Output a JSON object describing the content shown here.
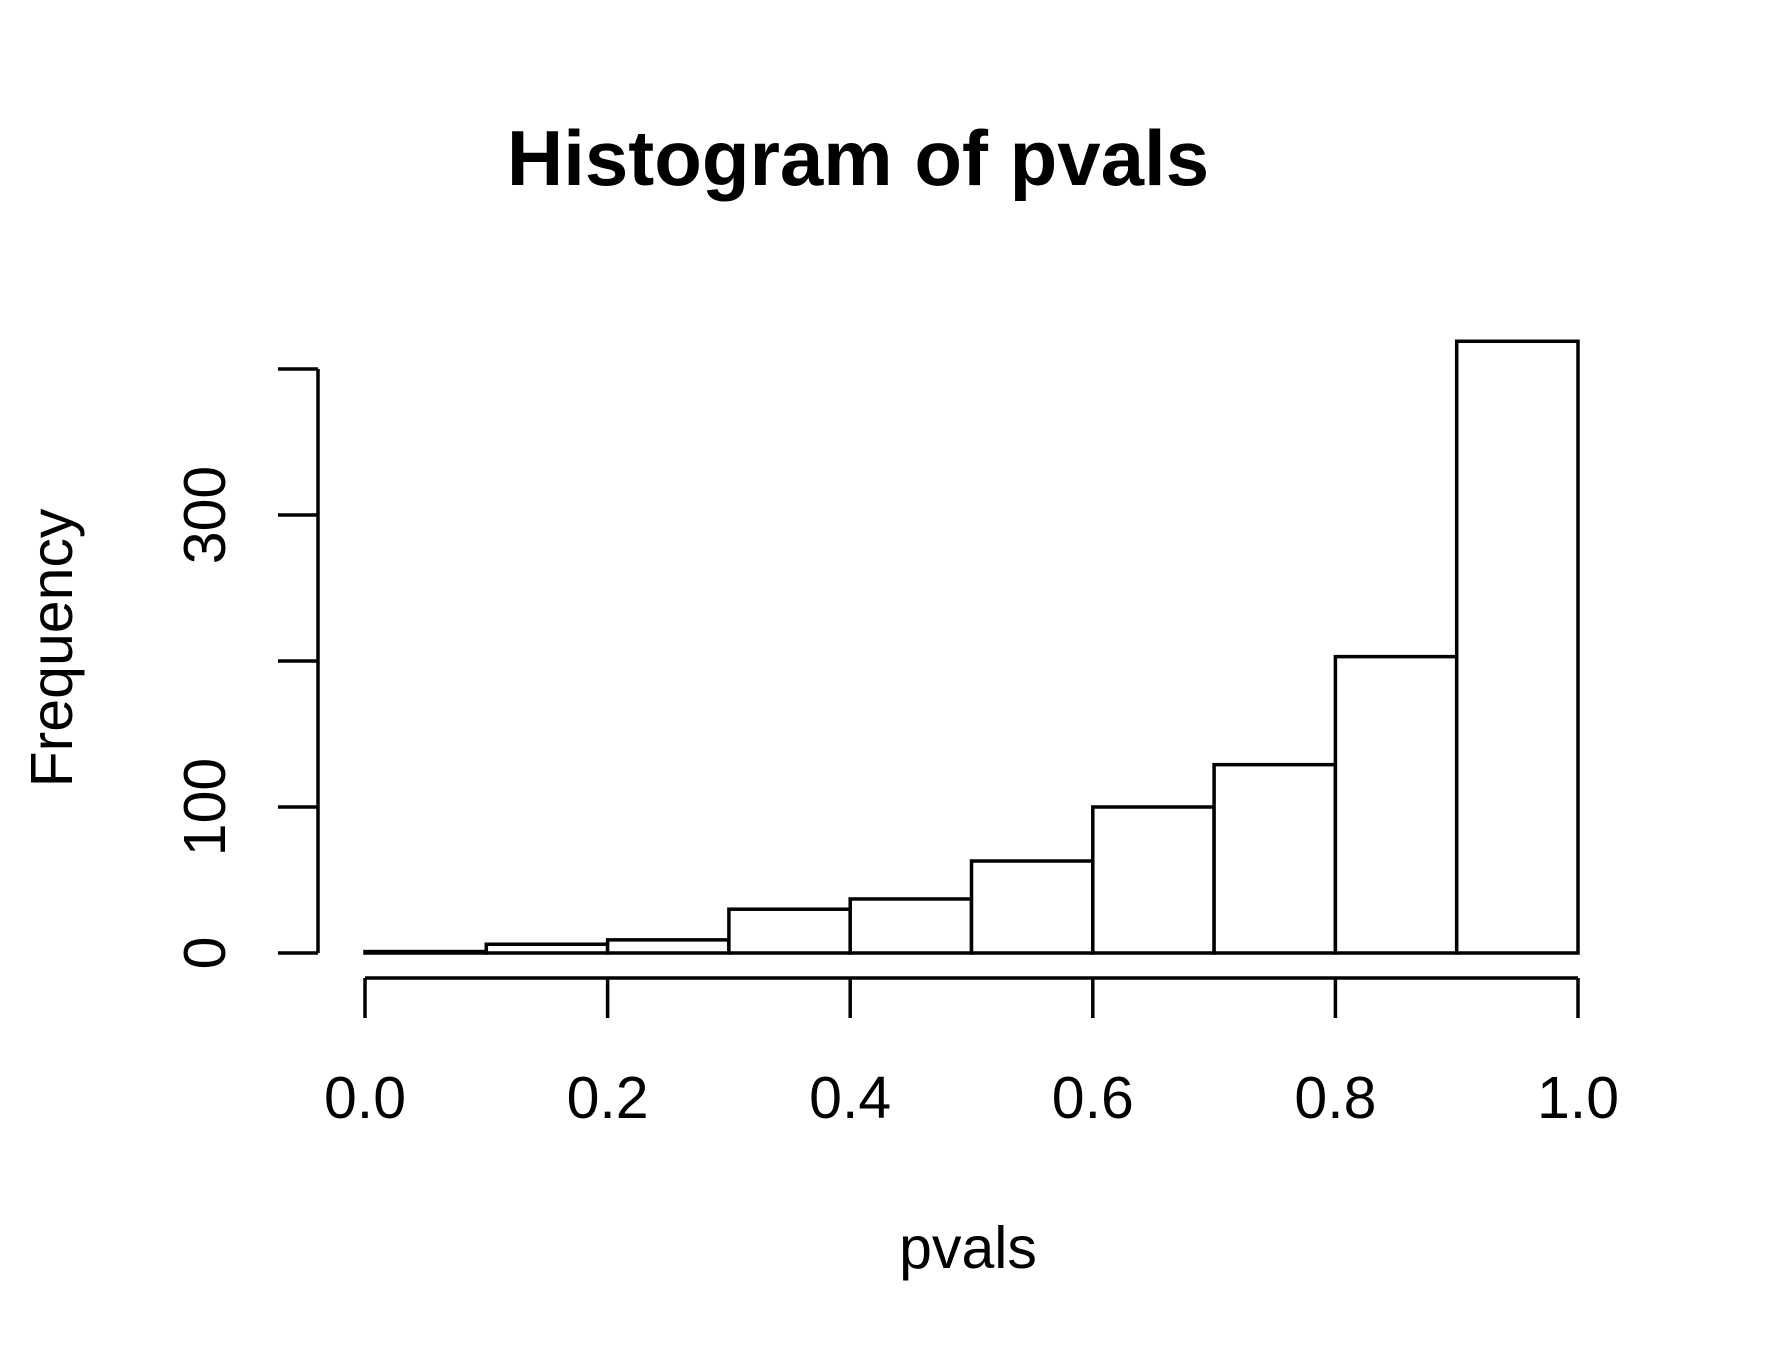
{
  "chart_data": {
    "type": "bar",
    "title": "Histogram of pvals",
    "xlabel": "pvals",
    "ylabel": "Frequency",
    "bins": [
      {
        "start": 0.0,
        "end": 0.1,
        "count": 1
      },
      {
        "start": 0.1,
        "end": 0.2,
        "count": 6
      },
      {
        "start": 0.2,
        "end": 0.3,
        "count": 9
      },
      {
        "start": 0.3,
        "end": 0.4,
        "count": 30
      },
      {
        "start": 0.4,
        "end": 0.5,
        "count": 37
      },
      {
        "start": 0.5,
        "end": 0.6,
        "count": 63
      },
      {
        "start": 0.6,
        "end": 0.7,
        "count": 100
      },
      {
        "start": 0.7,
        "end": 0.8,
        "count": 129
      },
      {
        "start": 0.8,
        "end": 0.9,
        "count": 203
      },
      {
        "start": 0.9,
        "end": 1.0,
        "count": 419
      }
    ],
    "xlim": [
      0,
      1
    ],
    "ylim": [
      0,
      400
    ],
    "x_ticks": [
      0.0,
      0.2,
      0.4,
      0.6,
      0.8,
      1.0
    ],
    "x_tick_labels": [
      "0.0",
      "0.2",
      "0.4",
      "0.6",
      "0.8",
      "1.0"
    ],
    "y_ticks": [
      0,
      100,
      200,
      300,
      400
    ],
    "y_tick_labels": [
      "0",
      "100",
      "",
      "300",
      ""
    ],
    "grid": false,
    "legend": "none",
    "colors": {
      "bar_fill": "#ffffff",
      "bar_stroke": "#000000",
      "background": "#ffffff"
    }
  }
}
